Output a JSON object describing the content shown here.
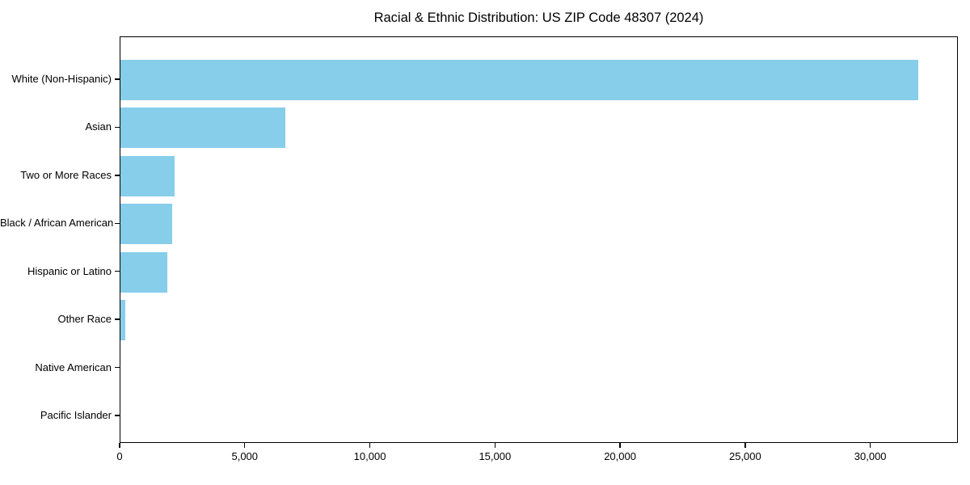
{
  "chart_data": {
    "type": "bar",
    "orientation": "horizontal",
    "title": "Racial & Ethnic Distribution: US ZIP Code 48307 (2024)",
    "categories": [
      "White (Non-Hispanic)",
      "Asian",
      "Two or More Races",
      "Black / African American",
      "Hispanic or Latino",
      "Other Race",
      "Native American",
      "Pacific Islander"
    ],
    "values": [
      31900,
      6590,
      2160,
      2070,
      1870,
      190,
      0,
      0
    ],
    "bar_color": "#87CEEB",
    "xlabel": "",
    "ylabel": "",
    "xlim": [
      0,
      33500
    ],
    "x_ticks": [
      0,
      5000,
      10000,
      15000,
      20000,
      25000,
      30000
    ],
    "x_tick_labels": [
      "0",
      "5,000",
      "10,000",
      "15,000",
      "20,000",
      "25,000",
      "30,000"
    ],
    "grid": false,
    "legend": null,
    "background_color": "#ffffff",
    "axis_color": "#000000"
  }
}
